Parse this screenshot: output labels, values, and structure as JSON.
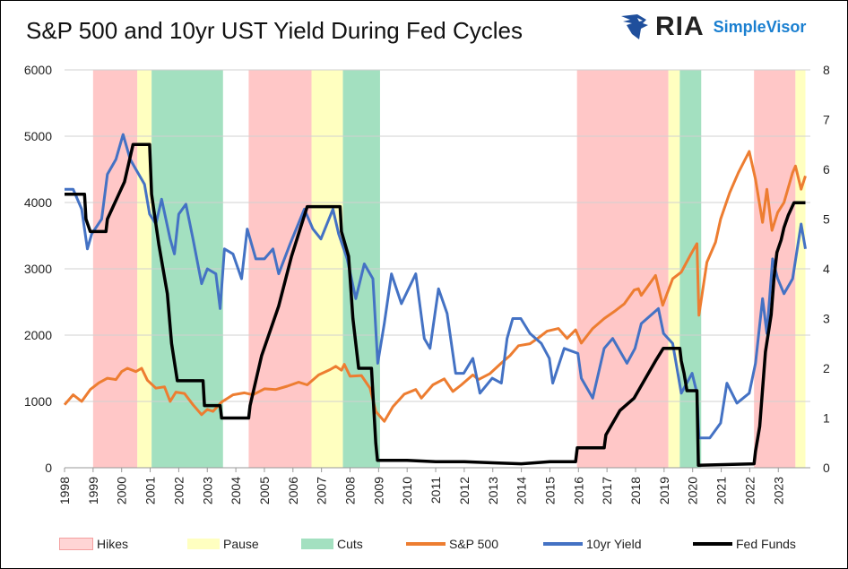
{
  "chart_data": {
    "type": "line",
    "title": "S&P 500 and 10yr UST Yield During Fed Cycles",
    "logo_text": "RIA SimpleVisor",
    "xlim": [
      1998,
      2023.95
    ],
    "x_ticks": [
      "1998",
      "1999",
      "2000",
      "2001",
      "2002",
      "2003",
      "2004",
      "2005",
      "2006",
      "2007",
      "2008",
      "2009",
      "2010",
      "2011",
      "2012",
      "2013",
      "2014",
      "2015",
      "2016",
      "2017",
      "2018",
      "2019",
      "2020",
      "2021",
      "2022",
      "2023"
    ],
    "y_left": {
      "lim": [
        0,
        6000
      ],
      "ticks": [
        "0",
        "1000",
        "2000",
        "3000",
        "4000",
        "5000",
        "6000"
      ]
    },
    "y_right": {
      "lim": [
        0,
        8
      ],
      "ticks": [
        "0",
        "1",
        "2",
        "3",
        "4",
        "5",
        "6",
        "7",
        "8"
      ]
    },
    "grid": "horizontal",
    "legend_position": "bottom",
    "colors": {
      "Hikes": "#ffc7c7",
      "Pause": "#ffffc0",
      "Cuts": "#a3e0c0",
      "S&P 500": "#ed7d31",
      "10yr Yield": "#4472c4",
      "Fed Funds": "#000000"
    },
    "regions": [
      {
        "name": "Hikes",
        "start": 1999.0,
        "end": 2000.55
      },
      {
        "name": "Pause",
        "start": 2000.55,
        "end": 2001.05
      },
      {
        "name": "Cuts",
        "start": 2001.05,
        "end": 2003.55
      },
      {
        "name": "Hikes",
        "start": 2004.45,
        "end": 2006.65
      },
      {
        "name": "Pause",
        "start": 2006.65,
        "end": 2007.75
      },
      {
        "name": "Cuts",
        "start": 2007.75,
        "end": 2009.05
      },
      {
        "name": "Hikes",
        "start": 2015.95,
        "end": 2019.15
      },
      {
        "name": "Pause",
        "start": 2019.15,
        "end": 2019.55
      },
      {
        "name": "Cuts",
        "start": 2019.55,
        "end": 2020.3
      },
      {
        "name": "Hikes",
        "start": 2022.15,
        "end": 2023.6
      },
      {
        "name": "Pause",
        "start": 2023.6,
        "end": 2023.95
      }
    ],
    "series": [
      {
        "name": "S&P 500",
        "axis": "left",
        "points": [
          [
            1998,
            950
          ],
          [
            1998.3,
            1100
          ],
          [
            1998.6,
            1000
          ],
          [
            1998.9,
            1180
          ],
          [
            1999.2,
            1280
          ],
          [
            1999.5,
            1350
          ],
          [
            1999.8,
            1330
          ],
          [
            2000.0,
            1450
          ],
          [
            2000.2,
            1500
          ],
          [
            2000.5,
            1450
          ],
          [
            2000.7,
            1500
          ],
          [
            2000.9,
            1320
          ],
          [
            2001.2,
            1200
          ],
          [
            2001.5,
            1220
          ],
          [
            2001.7,
            1000
          ],
          [
            2001.9,
            1140
          ],
          [
            2002.2,
            1120
          ],
          [
            2002.5,
            950
          ],
          [
            2002.8,
            800
          ],
          [
            2003.0,
            880
          ],
          [
            2003.2,
            850
          ],
          [
            2003.5,
            990
          ],
          [
            2003.9,
            1100
          ],
          [
            2004.3,
            1130
          ],
          [
            2004.6,
            1100
          ],
          [
            2005.0,
            1190
          ],
          [
            2005.4,
            1180
          ],
          [
            2005.8,
            1230
          ],
          [
            2006.2,
            1290
          ],
          [
            2006.5,
            1250
          ],
          [
            2006.9,
            1400
          ],
          [
            2007.3,
            1480
          ],
          [
            2007.5,
            1530
          ],
          [
            2007.7,
            1470
          ],
          [
            2007.8,
            1560
          ],
          [
            2008.0,
            1380
          ],
          [
            2008.4,
            1390
          ],
          [
            2008.7,
            1200
          ],
          [
            2008.9,
            850
          ],
          [
            2009.2,
            700
          ],
          [
            2009.5,
            920
          ],
          [
            2009.9,
            1110
          ],
          [
            2010.3,
            1180
          ],
          [
            2010.5,
            1050
          ],
          [
            2010.9,
            1250
          ],
          [
            2011.3,
            1340
          ],
          [
            2011.6,
            1150
          ],
          [
            2011.9,
            1250
          ],
          [
            2012.3,
            1400
          ],
          [
            2012.5,
            1330
          ],
          [
            2012.9,
            1420
          ],
          [
            2013.3,
            1580
          ],
          [
            2013.6,
            1690
          ],
          [
            2013.9,
            1840
          ],
          [
            2014.3,
            1870
          ],
          [
            2014.6,
            1960
          ],
          [
            2014.9,
            2060
          ],
          [
            2015.3,
            2100
          ],
          [
            2015.6,
            1950
          ],
          [
            2015.9,
            2080
          ],
          [
            2016.1,
            1880
          ],
          [
            2016.5,
            2100
          ],
          [
            2016.9,
            2250
          ],
          [
            2017.3,
            2370
          ],
          [
            2017.6,
            2470
          ],
          [
            2017.95,
            2680
          ],
          [
            2018.1,
            2700
          ],
          [
            2018.2,
            2600
          ],
          [
            2018.7,
            2900
          ],
          [
            2018.95,
            2450
          ],
          [
            2019.3,
            2850
          ],
          [
            2019.6,
            2950
          ],
          [
            2019.95,
            3230
          ],
          [
            2020.15,
            3380
          ],
          [
            2020.22,
            2300
          ],
          [
            2020.5,
            3100
          ],
          [
            2020.8,
            3400
          ],
          [
            2020.98,
            3750
          ],
          [
            2021.3,
            4150
          ],
          [
            2021.6,
            4450
          ],
          [
            2021.98,
            4770
          ],
          [
            2022.2,
            4350
          ],
          [
            2022.45,
            3700
          ],
          [
            2022.6,
            4200
          ],
          [
            2022.78,
            3580
          ],
          [
            2022.98,
            3850
          ],
          [
            2023.2,
            4000
          ],
          [
            2023.5,
            4450
          ],
          [
            2023.6,
            4550
          ],
          [
            2023.8,
            4200
          ],
          [
            2023.95,
            4400
          ]
        ]
      },
      {
        "name": "10yr Yield",
        "axis": "right",
        "points": [
          [
            1998,
            5.6
          ],
          [
            1998.3,
            5.6
          ],
          [
            1998.6,
            5.2
          ],
          [
            1998.8,
            4.4
          ],
          [
            1998.95,
            4.7
          ],
          [
            1999.3,
            5.0
          ],
          [
            1999.5,
            5.9
          ],
          [
            1999.8,
            6.2
          ],
          [
            2000.05,
            6.7
          ],
          [
            2000.3,
            6.2
          ],
          [
            2000.5,
            6.0
          ],
          [
            2000.8,
            5.7
          ],
          [
            2000.98,
            5.1
          ],
          [
            2001.2,
            4.9
          ],
          [
            2001.4,
            5.4
          ],
          [
            2001.7,
            4.6
          ],
          [
            2001.85,
            4.3
          ],
          [
            2002.0,
            5.1
          ],
          [
            2002.25,
            5.3
          ],
          [
            2002.5,
            4.6
          ],
          [
            2002.8,
            3.7
          ],
          [
            2003.0,
            4.0
          ],
          [
            2003.3,
            3.9
          ],
          [
            2003.45,
            3.2
          ],
          [
            2003.6,
            4.4
          ],
          [
            2003.9,
            4.3
          ],
          [
            2004.2,
            3.8
          ],
          [
            2004.4,
            4.8
          ],
          [
            2004.7,
            4.2
          ],
          [
            2005.0,
            4.2
          ],
          [
            2005.3,
            4.4
          ],
          [
            2005.5,
            3.9
          ],
          [
            2005.9,
            4.5
          ],
          [
            2006.4,
            5.2
          ],
          [
            2006.7,
            4.8
          ],
          [
            2006.98,
            4.6
          ],
          [
            2007.4,
            5.2
          ],
          [
            2007.6,
            4.7
          ],
          [
            2007.9,
            4.2
          ],
          [
            2008.2,
            3.4
          ],
          [
            2008.5,
            4.1
          ],
          [
            2008.8,
            3.8
          ],
          [
            2008.97,
            2.1
          ],
          [
            2009.2,
            2.9
          ],
          [
            2009.45,
            3.9
          ],
          [
            2009.8,
            3.3
          ],
          [
            2010.3,
            3.9
          ],
          [
            2010.6,
            2.6
          ],
          [
            2010.8,
            2.4
          ],
          [
            2011.1,
            3.6
          ],
          [
            2011.4,
            3.1
          ],
          [
            2011.7,
            1.9
          ],
          [
            2011.98,
            1.9
          ],
          [
            2012.3,
            2.2
          ],
          [
            2012.55,
            1.5
          ],
          [
            2012.98,
            1.8
          ],
          [
            2013.3,
            1.7
          ],
          [
            2013.5,
            2.6
          ],
          [
            2013.7,
            3.0
          ],
          [
            2013.98,
            3.0
          ],
          [
            2014.3,
            2.7
          ],
          [
            2014.7,
            2.5
          ],
          [
            2014.98,
            2.2
          ],
          [
            2015.1,
            1.7
          ],
          [
            2015.5,
            2.4
          ],
          [
            2015.98,
            2.3
          ],
          [
            2016.1,
            1.8
          ],
          [
            2016.5,
            1.4
          ],
          [
            2016.9,
            2.4
          ],
          [
            2017.2,
            2.6
          ],
          [
            2017.7,
            2.1
          ],
          [
            2017.98,
            2.4
          ],
          [
            2018.2,
            2.9
          ],
          [
            2018.8,
            3.2
          ],
          [
            2018.98,
            2.7
          ],
          [
            2019.3,
            2.5
          ],
          [
            2019.6,
            1.5
          ],
          [
            2019.98,
            1.9
          ],
          [
            2020.15,
            1.5
          ],
          [
            2020.22,
            0.6
          ],
          [
            2020.6,
            0.6
          ],
          [
            2020.98,
            0.9
          ],
          [
            2021.2,
            1.7
          ],
          [
            2021.55,
            1.3
          ],
          [
            2021.98,
            1.5
          ],
          [
            2022.2,
            2.1
          ],
          [
            2022.45,
            3.4
          ],
          [
            2022.6,
            2.7
          ],
          [
            2022.8,
            4.2
          ],
          [
            2022.98,
            3.8
          ],
          [
            2023.2,
            3.5
          ],
          [
            2023.5,
            3.8
          ],
          [
            2023.8,
            4.9
          ],
          [
            2023.95,
            4.4
          ]
        ]
      },
      {
        "name": "Fed Funds",
        "axis": "right",
        "points": [
          [
            1998,
            5.5
          ],
          [
            1998.7,
            5.5
          ],
          [
            1998.75,
            5.0
          ],
          [
            1998.9,
            4.75
          ],
          [
            1999.45,
            4.75
          ],
          [
            1999.5,
            5.0
          ],
          [
            1999.9,
            5.5
          ],
          [
            2000.1,
            5.75
          ],
          [
            2000.4,
            6.5
          ],
          [
            2000.98,
            6.5
          ],
          [
            2001.05,
            5.5
          ],
          [
            2001.3,
            4.5
          ],
          [
            2001.6,
            3.5
          ],
          [
            2001.75,
            2.5
          ],
          [
            2001.95,
            1.75
          ],
          [
            2002.85,
            1.75
          ],
          [
            2002.9,
            1.25
          ],
          [
            2003.45,
            1.25
          ],
          [
            2003.5,
            1.0
          ],
          [
            2004.45,
            1.0
          ],
          [
            2004.5,
            1.25
          ],
          [
            2004.9,
            2.25
          ],
          [
            2005.5,
            3.25
          ],
          [
            2005.95,
            4.25
          ],
          [
            2006.5,
            5.25
          ],
          [
            2007.65,
            5.25
          ],
          [
            2007.7,
            4.75
          ],
          [
            2007.95,
            4.25
          ],
          [
            2008.1,
            3.0
          ],
          [
            2008.3,
            2.0
          ],
          [
            2008.75,
            2.0
          ],
          [
            2008.8,
            1.5
          ],
          [
            2008.9,
            0.5
          ],
          [
            2008.96,
            0.15
          ],
          [
            2010,
            0.15
          ],
          [
            2011,
            0.12
          ],
          [
            2012,
            0.12
          ],
          [
            2013,
            0.1
          ],
          [
            2014,
            0.08
          ],
          [
            2015,
            0.12
          ],
          [
            2015.9,
            0.12
          ],
          [
            2015.96,
            0.4
          ],
          [
            2016.9,
            0.4
          ],
          [
            2016.96,
            0.66
          ],
          [
            2017.2,
            0.9
          ],
          [
            2017.45,
            1.15
          ],
          [
            2017.95,
            1.4
          ],
          [
            2018.2,
            1.65
          ],
          [
            2018.45,
            1.9
          ],
          [
            2018.7,
            2.15
          ],
          [
            2018.97,
            2.4
          ],
          [
            2019.55,
            2.4
          ],
          [
            2019.6,
            2.15
          ],
          [
            2019.7,
            1.9
          ],
          [
            2019.8,
            1.55
          ],
          [
            2020.15,
            1.55
          ],
          [
            2020.2,
            0.05
          ],
          [
            2022.15,
            0.08
          ],
          [
            2022.2,
            0.33
          ],
          [
            2022.35,
            0.83
          ],
          [
            2022.45,
            1.58
          ],
          [
            2022.55,
            2.33
          ],
          [
            2022.75,
            3.08
          ],
          [
            2022.85,
            3.83
          ],
          [
            2022.95,
            4.33
          ],
          [
            2023.1,
            4.58
          ],
          [
            2023.2,
            4.83
          ],
          [
            2023.35,
            5.08
          ],
          [
            2023.55,
            5.33
          ],
          [
            2023.95,
            5.33
          ]
        ]
      }
    ]
  },
  "legend": {
    "items": [
      "Hikes",
      "Pause",
      "Cuts",
      "S&P 500",
      "10yr Yield",
      "Fed Funds"
    ]
  }
}
